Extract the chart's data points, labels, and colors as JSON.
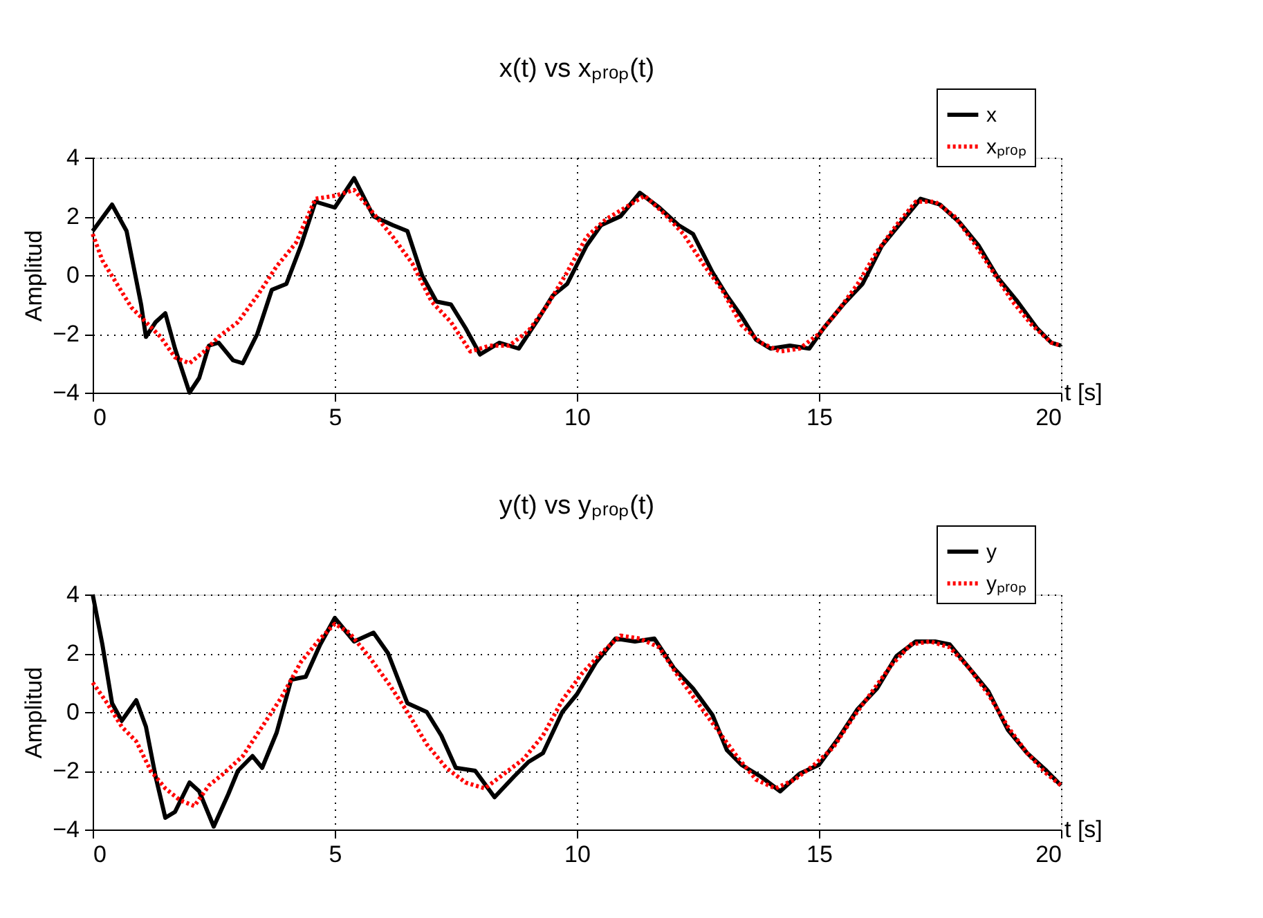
{
  "chart_data": [
    {
      "type": "line",
      "title": "x(t) vs xₚᵣₒₚ(t)",
      "xlabel": "t [s]",
      "ylabel": "Amplitud",
      "xlim": [
        0,
        20
      ],
      "xticks": [
        0,
        5,
        10,
        15,
        20
      ],
      "ylim": [
        -4,
        4
      ],
      "yticks": [
        -4,
        -2,
        0,
        2,
        4
      ],
      "grid": true,
      "legend": "top right",
      "series": [
        {
          "name": "x",
          "color": "#000000",
          "line_style": "solid",
          "x": [
            0,
            0.4,
            0.7,
            1.0,
            1.1,
            1.3,
            1.5,
            1.7,
            2.0,
            2.2,
            2.4,
            2.6,
            2.9,
            3.1,
            3.4,
            3.7,
            4.0,
            4.3,
            4.6,
            5.0,
            5.4,
            5.8,
            6.2,
            6.5,
            6.8,
            7.1,
            7.4,
            7.7,
            8.0,
            8.4,
            8.8,
            9.2,
            9.5,
            9.8,
            10.2,
            10.5,
            10.9,
            11.3,
            11.7,
            12.1,
            12.4,
            12.8,
            13.1,
            13.4,
            13.7,
            14.0,
            14.4,
            14.8,
            15.1,
            15.5,
            15.9,
            16.3,
            16.7,
            17.1,
            17.5,
            17.9,
            18.3,
            18.7,
            19.1,
            19.5,
            19.8,
            20
          ],
          "values": [
            1.5,
            2.4,
            1.5,
            -1.0,
            -2.1,
            -1.6,
            -1.3,
            -2.5,
            -4.0,
            -3.5,
            -2.4,
            -2.3,
            -2.9,
            -3.0,
            -2.0,
            -0.5,
            -0.3,
            1.0,
            2.5,
            2.3,
            3.3,
            2.0,
            1.7,
            1.5,
            0,
            -0.9,
            -1.0,
            -1.8,
            -2.7,
            -2.3,
            -2.5,
            -1.5,
            -0.7,
            -0.3,
            1.0,
            1.7,
            2.0,
            2.8,
            2.3,
            1.7,
            1.4,
            0.1,
            -0.7,
            -1.4,
            -2.2,
            -2.5,
            -2.4,
            -2.5,
            -1.8,
            -1.0,
            -0.3,
            1.0,
            1.8,
            2.6,
            2.4,
            1.8,
            1.0,
            -0.1,
            -0.9,
            -1.8,
            -2.3,
            -2.4
          ]
        },
        {
          "name": "xₚᵣₒₚ",
          "color": "#ff0000",
          "line_style": "dotted",
          "x": [
            0,
            0.2,
            0.5,
            0.8,
            1.1,
            1.4,
            1.7,
            2.0,
            2.3,
            2.6,
            3.0,
            3.4,
            3.8,
            4.2,
            4.6,
            5.0,
            5.4,
            5.8,
            6.2,
            6.6,
            7.0,
            7.4,
            7.8,
            8.2,
            8.6,
            9.0,
            9.4,
            9.8,
            10.2,
            10.6,
            11.0,
            11.4,
            11.8,
            12.2,
            12.6,
            13.0,
            13.4,
            13.8,
            14.2,
            14.6,
            15.0,
            15.4,
            15.8,
            16.2,
            16.6,
            17.0,
            17.4,
            17.8,
            18.2,
            18.6,
            19.0,
            19.4,
            19.8,
            20
          ],
          "values": [
            1.4,
            0.5,
            -0.3,
            -1.1,
            -1.6,
            -2.1,
            -2.8,
            -3.0,
            -2.6,
            -2.1,
            -1.6,
            -0.7,
            0.3,
            1.1,
            2.6,
            2.7,
            2.9,
            2.1,
            1.3,
            0.4,
            -0.9,
            -1.6,
            -2.6,
            -2.4,
            -2.4,
            -1.9,
            -1.0,
            0.1,
            1.3,
            1.9,
            2.3,
            2.7,
            2.1,
            1.4,
            0.4,
            -0.5,
            -1.7,
            -2.3,
            -2.6,
            -2.5,
            -2.0,
            -1.2,
            -0.3,
            0.8,
            1.7,
            2.5,
            2.5,
            2.0,
            1.1,
            0.1,
            -0.9,
            -1.7,
            -2.3,
            -2.4
          ]
        }
      ]
    },
    {
      "type": "line",
      "title": "y(t) vs yₚᵣₒₚ(t)",
      "xlabel": "t [s]",
      "ylabel": "Amplitud",
      "xlim": [
        0,
        20
      ],
      "xticks": [
        0,
        5,
        10,
        15,
        20
      ],
      "ylim": [
        -4,
        4
      ],
      "yticks": [
        -4,
        -2,
        0,
        2,
        4
      ],
      "grid": true,
      "legend": "top right",
      "series": [
        {
          "name": "y",
          "color": "#000000",
          "line_style": "solid",
          "x": [
            0,
            0.2,
            0.4,
            0.6,
            0.9,
            1.1,
            1.3,
            1.5,
            1.7,
            2.0,
            2.2,
            2.5,
            2.8,
            3.0,
            3.3,
            3.5,
            3.8,
            4.1,
            4.4,
            4.7,
            5.0,
            5.4,
            5.8,
            6.1,
            6.5,
            6.9,
            7.2,
            7.5,
            7.9,
            8.3,
            8.7,
            9.0,
            9.3,
            9.7,
            10.0,
            10.4,
            10.8,
            11.2,
            11.6,
            12.0,
            12.4,
            12.8,
            13.1,
            13.4,
            13.8,
            14.2,
            14.6,
            15.0,
            15.4,
            15.8,
            16.2,
            16.6,
            17.0,
            17.4,
            17.7,
            18.1,
            18.5,
            18.9,
            19.3,
            19.7,
            20
          ],
          "values": [
            4.0,
            2.3,
            0.3,
            -0.3,
            0.4,
            -0.5,
            -2.2,
            -3.6,
            -3.4,
            -2.4,
            -2.7,
            -3.9,
            -2.8,
            -2.0,
            -1.5,
            -1.9,
            -0.7,
            1.1,
            1.2,
            2.3,
            3.2,
            2.4,
            2.7,
            2.0,
            0.3,
            0,
            -0.8,
            -1.9,
            -2.0,
            -2.9,
            -2.2,
            -1.7,
            -1.4,
            0,
            0.6,
            1.7,
            2.5,
            2.4,
            2.5,
            1.5,
            0.8,
            -0.1,
            -1.3,
            -1.8,
            -2.2,
            -2.7,
            -2.1,
            -1.8,
            -0.9,
            0.1,
            0.8,
            1.9,
            2.4,
            2.4,
            2.3,
            1.5,
            0.7,
            -0.6,
            -1.4,
            -2.0,
            -2.5
          ]
        },
        {
          "name": "yₚᵣₒₚ",
          "color": "#ff0000",
          "line_style": "dotted",
          "x": [
            0,
            0.3,
            0.6,
            0.9,
            1.2,
            1.5,
            1.8,
            2.1,
            2.4,
            2.7,
            3.1,
            3.5,
            3.9,
            4.3,
            4.7,
            5.0,
            5.3,
            5.7,
            6.1,
            6.5,
            6.9,
            7.3,
            7.7,
            8.1,
            8.5,
            8.9,
            9.3,
            9.7,
            10.1,
            10.5,
            10.9,
            11.3,
            11.7,
            12.1,
            12.5,
            12.9,
            13.3,
            13.7,
            14.1,
            14.5,
            14.9,
            15.3,
            15.7,
            16.1,
            16.5,
            16.9,
            17.3,
            17.7,
            18.1,
            18.5,
            18.9,
            19.3,
            19.7,
            20
          ],
          "values": [
            1.0,
            0.3,
            -0.5,
            -1.0,
            -2.0,
            -2.6,
            -3.0,
            -3.2,
            -2.5,
            -2.1,
            -1.5,
            -0.5,
            0.5,
            1.7,
            2.5,
            3.0,
            2.7,
            1.9,
            1.0,
            0,
            -1.1,
            -1.9,
            -2.4,
            -2.6,
            -2.1,
            -1.6,
            -0.8,
            0.4,
            1.3,
            2.0,
            2.6,
            2.5,
            2.2,
            1.2,
            0.3,
            -0.6,
            -1.5,
            -2.3,
            -2.6,
            -2.3,
            -1.8,
            -1.2,
            -0.2,
            0.7,
            1.6,
            2.3,
            2.4,
            2.2,
            1.5,
            0.6,
            -0.5,
            -1.4,
            -2.1,
            -2.5
          ]
        }
      ]
    }
  ]
}
